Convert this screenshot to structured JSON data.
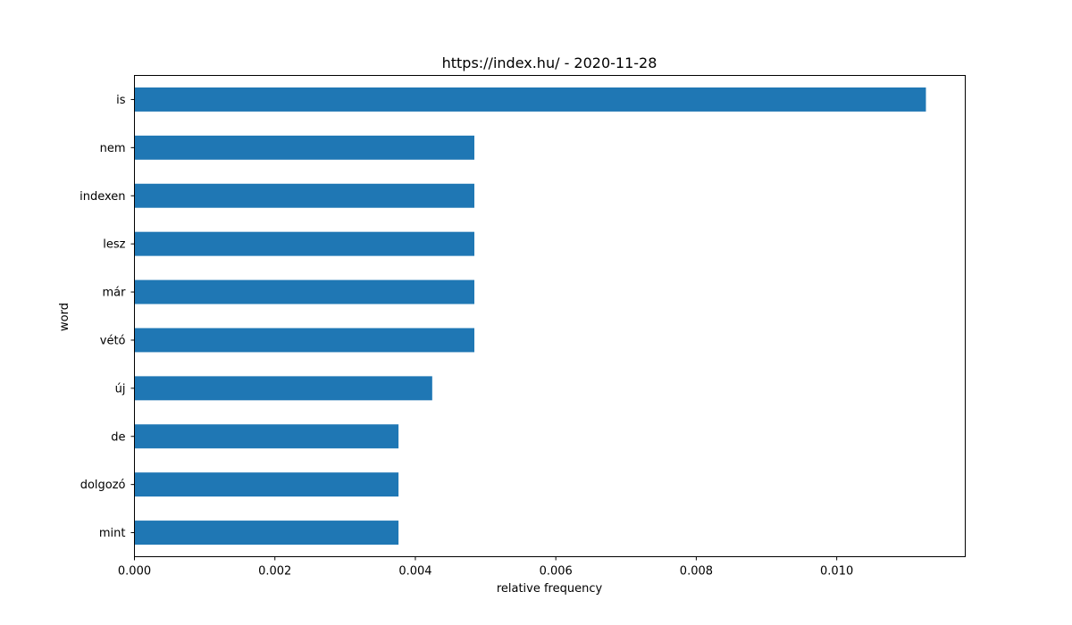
{
  "chart_data": {
    "type": "bar",
    "orientation": "horizontal",
    "title": "https://index.hu/ - 2020-11-28",
    "xlabel": "relative frequency",
    "ylabel": "word",
    "categories": [
      "is",
      "nem",
      "indexen",
      "lesz",
      "már",
      "vétó",
      "új",
      "de",
      "dolgozó",
      "mint"
    ],
    "values": [
      0.01127,
      0.00484,
      0.00484,
      0.00484,
      0.00484,
      0.00484,
      0.00424,
      0.00376,
      0.00376,
      0.00376
    ],
    "xlim": [
      0,
      0.01183
    ],
    "xticks": [
      "0.000",
      "0.002",
      "0.004",
      "0.006",
      "0.008",
      "0.010"
    ],
    "xtick_values": [
      0,
      0.002,
      0.004,
      0.006,
      0.008,
      0.01
    ],
    "bar_color": "#1f77b4",
    "grid": false,
    "legend": "none"
  }
}
